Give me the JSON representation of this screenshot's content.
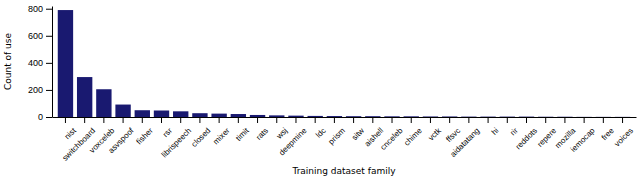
{
  "chart_data": {
    "type": "bar",
    "xlabel": "Training dataset family",
    "ylabel": "Count of use",
    "categories": [
      "nist",
      "switchboard",
      "voxceleb",
      "asvspoof",
      "fisher",
      "rsr",
      "librispeech",
      "closed",
      "mixer",
      "timit",
      "rats",
      "wsj",
      "deepmine",
      "ldc",
      "prism",
      "sitw",
      "aishell",
      "cnceleb",
      "chime",
      "vctk",
      "ffsvc",
      "aidatatang",
      "hi",
      "rir",
      "reddots",
      "repere",
      "mozilla",
      "iemocap",
      "free",
      "voices"
    ],
    "values": [
      790,
      295,
      205,
      92,
      50,
      48,
      42,
      28,
      25,
      22,
      15,
      12,
      10,
      8,
      7,
      6,
      6,
      5,
      5,
      4,
      4,
      3,
      3,
      3,
      3,
      2,
      2,
      1,
      1,
      1
    ],
    "color": "#191970",
    "ylim": [
      0,
      820
    ],
    "yticks": [
      0,
      200,
      400,
      600,
      800
    ],
    "grid": false
  }
}
